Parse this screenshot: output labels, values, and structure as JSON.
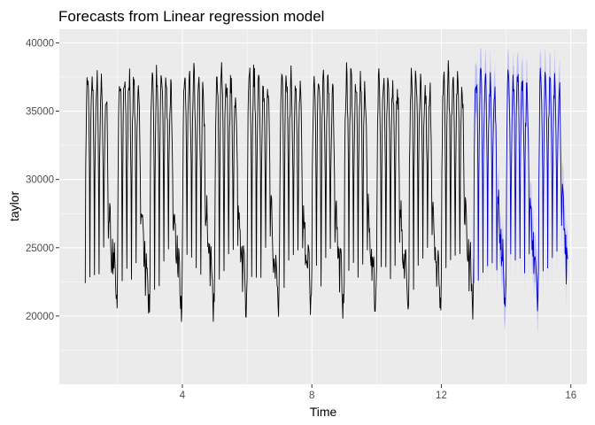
{
  "chart_data": {
    "type": "line",
    "title": "Forecasts from Linear regression model",
    "xlabel": "Time",
    "ylabel": "taylor",
    "xlim": [
      0.2,
      16.5
    ],
    "ylim": [
      15000,
      41000
    ],
    "x_ticks": [
      4,
      8,
      12,
      16
    ],
    "y_ticks": [
      20000,
      25000,
      30000,
      35000,
      40000
    ],
    "x_tick_labels": [
      "4",
      "8",
      "12",
      "16"
    ],
    "y_tick_labels": [
      "20000",
      "25000",
      "30000",
      "35000",
      "40000"
    ],
    "grid": true,
    "legend": "none",
    "colors": {
      "panel_background": "#ebebeb",
      "grid_major": "#ffffff",
      "observed_line": "#000000",
      "forecast_line": "#0000cc",
      "prediction_band": "#9999ff"
    },
    "series": [
      {
        "role": "observed",
        "x_start": 1,
        "x_end": 13,
        "weekly_cycle": 1,
        "daily_peaks": [
          37500,
          37800,
          37500,
          37000,
          36500
        ],
        "daily_troughs": [
          23500,
          23000,
          23200,
          23500,
          24000
        ],
        "weekend_level": [
          26000,
          22500
        ],
        "overall_min": 18700,
        "overall_max": 38700
      },
      {
        "role": "forecast",
        "x_start": 13,
        "x_end": 15.9,
        "weekly_cycle": 1,
        "daily_peaks": [
          37800,
          37500,
          37600,
          37200,
          36400
        ],
        "daily_troughs": [
          23500,
          23000,
          23300,
          23600,
          24200
        ],
        "prediction_interval_min": 17300,
        "prediction_interval_max": 39600
      }
    ]
  }
}
